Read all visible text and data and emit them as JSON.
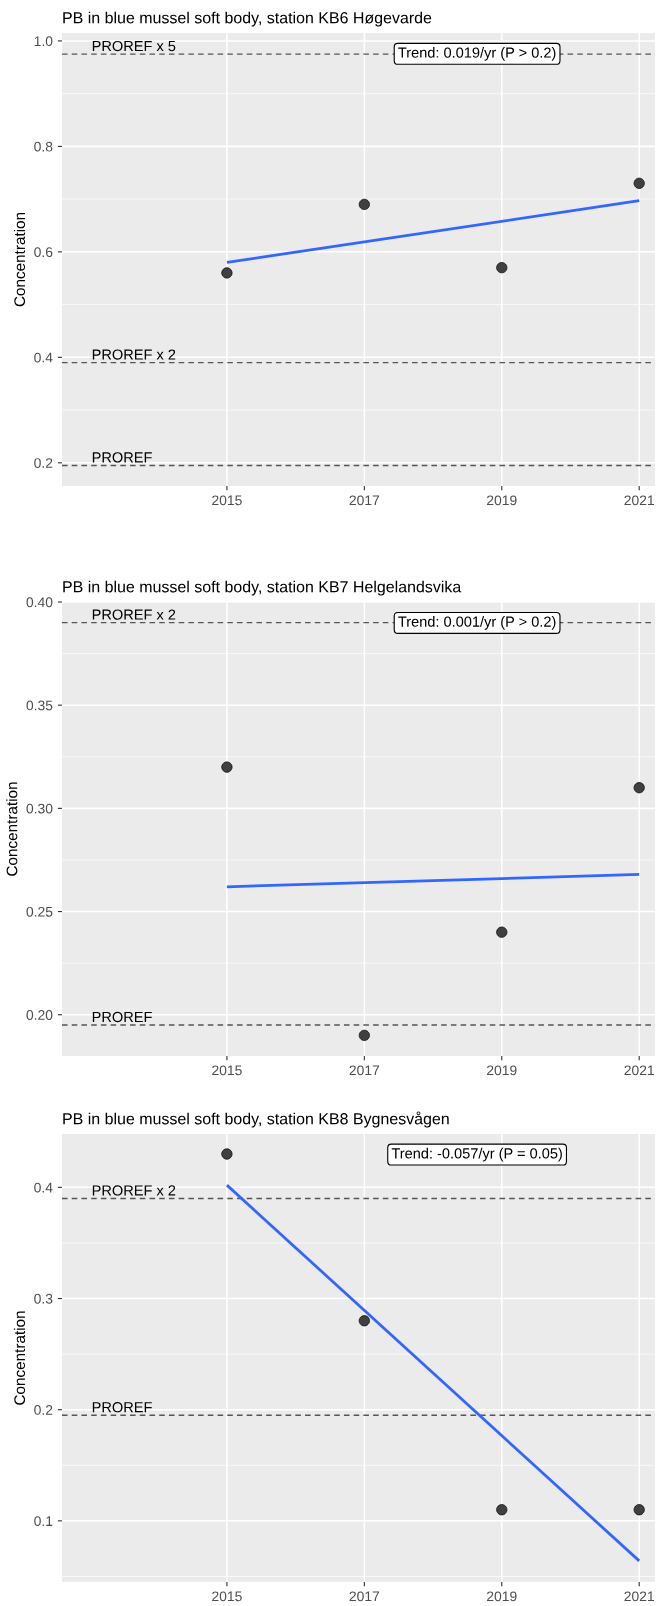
{
  "chart_data": [
    {
      "type": "scatter",
      "title": "PB in blue mussel soft body, station KB6 Høgevarde",
      "ylabel": "Concentration",
      "xlim": [
        2012.6,
        2021.23
      ],
      "xticks": [
        2015,
        2017,
        2019,
        2021
      ],
      "ylim": [
        0.156,
        1.015
      ],
      "yticks": [
        {
          "value": 0.2,
          "label": "0.2"
        },
        {
          "value": 0.4,
          "label": "0.4"
        },
        {
          "value": 0.6,
          "label": "0.6"
        },
        {
          "value": 0.8,
          "label": "0.8"
        },
        {
          "value": 1.0,
          "label": "1.0"
        }
      ],
      "grid": true,
      "series": [
        {
          "marker": "circle",
          "color": "#404040",
          "x": [
            2015,
            2017,
            2019,
            2021
          ],
          "values": [
            0.56,
            0.69,
            0.57,
            0.73
          ]
        },
        {
          "type": "line",
          "color": "#3366ff",
          "x": [
            2015,
            2021
          ],
          "values": [
            0.58,
            0.697
          ]
        }
      ],
      "ref_lines": [
        {
          "axis": "y",
          "value": 0.975,
          "label": "PROREF x 5",
          "line_style": "dashed",
          "color": "#555555"
        },
        {
          "axis": "y",
          "value": 0.39,
          "label": "PROREF x 2",
          "line_style": "dashed",
          "color": "#555555"
        },
        {
          "axis": "y",
          "value": 0.195,
          "label": "PROREF",
          "line_style": "dashed",
          "color": "#555555"
        }
      ],
      "annotations": [
        "Trend: 0.019/yr (P > 0.2)"
      ]
    },
    {
      "type": "scatter",
      "title": "PB in blue mussel soft body, station KB7 Helgelandsvika",
      "ylabel": "Concentration",
      "xlim": [
        2012.6,
        2021.23
      ],
      "xticks": [
        2015,
        2017,
        2019,
        2021
      ],
      "ylim": [
        0.18,
        0.4
      ],
      "yticks": [
        {
          "value": 0.2,
          "label": "0.20"
        },
        {
          "value": 0.25,
          "label": "0.25"
        },
        {
          "value": 0.3,
          "label": "0.30"
        },
        {
          "value": 0.35,
          "label": "0.35"
        },
        {
          "value": 0.4,
          "label": "0.40"
        }
      ],
      "grid": true,
      "series": [
        {
          "marker": "circle",
          "color": "#404040",
          "x": [
            2015,
            2017,
            2019,
            2021
          ],
          "values": [
            0.32,
            0.19,
            0.24,
            0.31
          ]
        },
        {
          "type": "line",
          "color": "#3366ff",
          "x": [
            2015,
            2021
          ],
          "values": [
            0.262,
            0.268
          ]
        }
      ],
      "ref_lines": [
        {
          "axis": "y",
          "value": 0.39,
          "label": "PROREF x 2",
          "line_style": "dashed",
          "color": "#555555"
        },
        {
          "axis": "y",
          "value": 0.195,
          "label": "PROREF",
          "line_style": "dashed",
          "color": "#555555"
        }
      ],
      "annotations": [
        "Trend: 0.001/yr (P > 0.2)"
      ]
    },
    {
      "type": "scatter",
      "title": "PB in blue mussel soft body, station KB8 Bygnesvågen",
      "ylabel": "Concentration",
      "xlim": [
        2012.6,
        2021.23
      ],
      "xticks": [
        2015,
        2017,
        2019,
        2021
      ],
      "ylim": [
        0.045,
        0.448
      ],
      "yticks": [
        0.1,
        0.2,
        0.3,
        0.4
      ],
      "grid": true,
      "series": [
        {
          "marker": "circle",
          "color": "#404040",
          "x": [
            2015,
            2017,
            2019,
            2021
          ],
          "values": [
            0.43,
            0.28,
            0.11,
            0.11
          ]
        },
        {
          "type": "line",
          "color": "#3366ff",
          "x": [
            2015,
            2021
          ],
          "values": [
            0.402,
            0.064
          ]
        }
      ],
      "ref_lines": [
        {
          "axis": "y",
          "value": 0.39,
          "label": "PROREF x 2",
          "line_style": "dashed",
          "color": "#555555"
        },
        {
          "axis": "y",
          "value": 0.195,
          "label": "PROREF",
          "line_style": "dashed",
          "color": "#555555"
        }
      ],
      "annotations": [
        "Trend: -0.057/yr (P = 0.05)"
      ]
    }
  ]
}
